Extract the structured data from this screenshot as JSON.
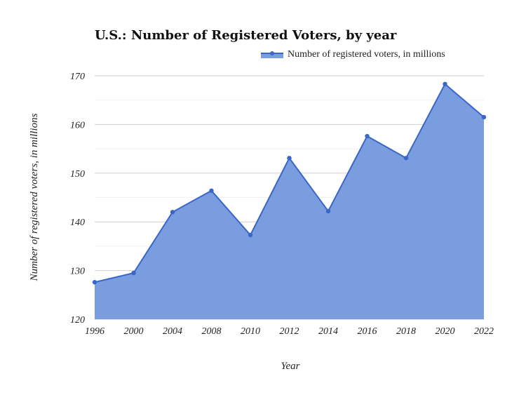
{
  "chart_data": {
    "type": "area",
    "title": "U.S.: Number of Registered Voters, by year",
    "xlabel": "Year",
    "ylabel": "Number of registered voters, in millions",
    "categories": [
      "1996",
      "2000",
      "2004",
      "2008",
      "2010",
      "2012",
      "2014",
      "2016",
      "2018",
      "2020",
      "2022"
    ],
    "series": [
      {
        "name": "Number of registered voters, in millions",
        "values": [
          127.6,
          129.5,
          142.0,
          146.4,
          137.3,
          153.1,
          142.2,
          157.6,
          153.1,
          168.3,
          161.5
        ]
      }
    ],
    "ylim": [
      120,
      170
    ],
    "yticks": [
      120,
      130,
      140,
      150,
      160,
      170
    ],
    "grid": true,
    "legend": "top-right",
    "colors": {
      "fill": "#7a9de0",
      "line": "#3a66c8"
    }
  }
}
